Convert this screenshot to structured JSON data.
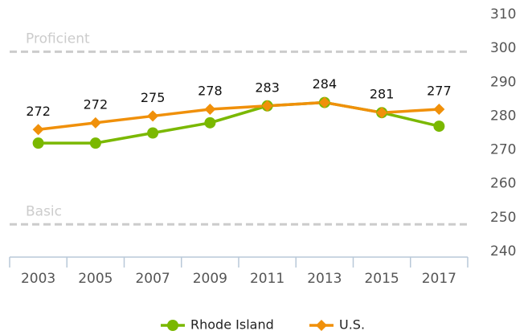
{
  "chart_data": {
    "type": "line",
    "categories": [
      "2003",
      "2005",
      "2007",
      "2009",
      "2011",
      "2013",
      "2015",
      "2017"
    ],
    "series": [
      {
        "name": "Rhode Island",
        "color": "#7ab800",
        "marker": "circle",
        "values": [
          272,
          272,
          275,
          278,
          283,
          284,
          281,
          277
        ]
      },
      {
        "name": "U.S.",
        "color": "#f0900a",
        "marker": "diamond",
        "values": [
          276,
          278,
          280,
          282,
          283,
          284,
          281,
          282
        ]
      }
    ],
    "ylim": [
      240,
      310
    ],
    "yticks": [
      240,
      250,
      260,
      270,
      280,
      290,
      300,
      310
    ],
    "grid": false,
    "reference_lines": [
      {
        "label": "Proficient",
        "value": 299
      },
      {
        "label": "Basic",
        "value": 248
      }
    ],
    "legend": "bottom"
  }
}
